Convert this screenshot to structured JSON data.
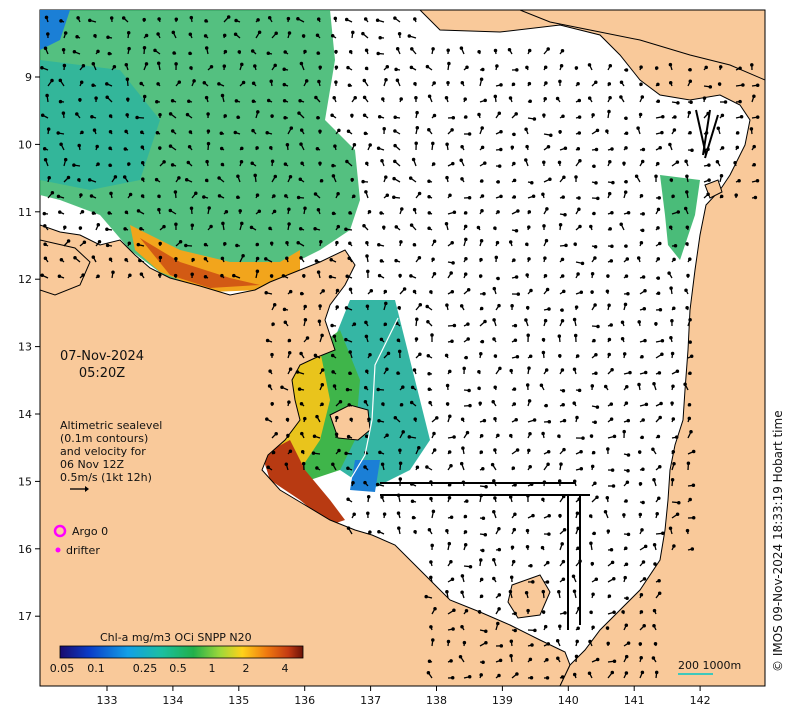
{
  "map": {
    "date": "07-Nov-2024",
    "time": "05:20Z",
    "altimetry_lines": [
      "Altimetric sealevel",
      "(0.1m contours)",
      "and velocity for",
      "06 Nov 12Z",
      "0.5m/s (1kt 12h)"
    ],
    "copyright": "© IMOS 09-Nov-2024 18:33:19 Hobart time",
    "legend_argo": "Argo 0",
    "legend_drifter": "drifter",
    "colorbar_title": "Chl-a mg/m3 OCi SNPP N20",
    "colorbar_ticks": [
      "0.05",
      "0.1",
      "0.25",
      "0.5",
      "1",
      "2",
      "4"
    ],
    "scale_label": "200  1000m",
    "lon_ticks": [
      "133",
      "134",
      "135",
      "136",
      "137",
      "138",
      "139",
      "140",
      "141",
      "142"
    ],
    "lat_ticks": [
      "9",
      "10",
      "11",
      "12",
      "13",
      "14",
      "15",
      "16",
      "17"
    ],
    "colors": {
      "land": "#f9c99a",
      "ocean": "#ffffff",
      "argo": "#ff00ff",
      "drifter": "#ff00ff",
      "scale_line": "#00c8c8"
    },
    "extent": {
      "lon_min": 132.0,
      "lon_max": 143.0,
      "lat_min": 8.0,
      "lat_max": 17.9
    }
  }
}
